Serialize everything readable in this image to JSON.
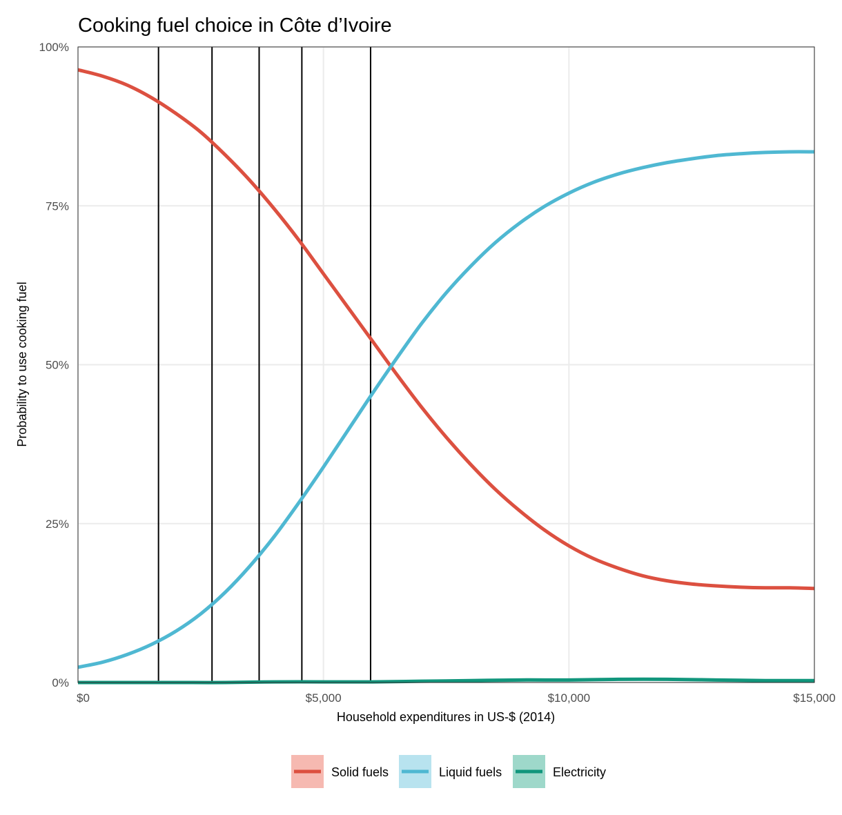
{
  "chart_data": {
    "type": "line",
    "title": "Cooking fuel choice in Côte d’Ivoire",
    "xlabel": "Household expenditures in US-$ (2014)",
    "ylabel": "Probability to use cooking fuel",
    "xlim": [
      0,
      15000
    ],
    "ylim": [
      0,
      1
    ],
    "x_ticks": [
      0,
      5000,
      10000,
      15000
    ],
    "x_tick_labels": [
      "$0",
      "$5,000",
      "$10,000",
      "$15,000"
    ],
    "y_ticks": [
      0,
      0.25,
      0.5,
      0.75,
      1
    ],
    "y_tick_labels": [
      "0%",
      "25%",
      "50%",
      "75%",
      "100%"
    ],
    "grid": true,
    "legend_position": "bottom",
    "vertical_lines": [
      1640,
      2730,
      3690,
      4560,
      5960
    ],
    "series": [
      {
        "name": "Solid fuels",
        "color": "#DC5040",
        "x": [
          0,
          500,
          1000,
          1500,
          2000,
          2500,
          3000,
          3500,
          4000,
          4500,
          5000,
          5500,
          6000,
          6500,
          7000,
          7500,
          8000,
          8500,
          9000,
          9500,
          10000,
          10500,
          11000,
          11500,
          12000,
          12500,
          13000,
          13500,
          14000,
          14500,
          15000
        ],
        "values": [
          0.964,
          0.954,
          0.94,
          0.92,
          0.895,
          0.866,
          0.83,
          0.79,
          0.745,
          0.696,
          0.643,
          0.59,
          0.537,
          0.484,
          0.433,
          0.386,
          0.343,
          0.304,
          0.27,
          0.24,
          0.215,
          0.195,
          0.18,
          0.168,
          0.16,
          0.155,
          0.152,
          0.15,
          0.149,
          0.149,
          0.148
        ]
      },
      {
        "name": "Liquid fuels",
        "color": "#4FB8D2",
        "x": [
          0,
          500,
          1000,
          1500,
          2000,
          2500,
          3000,
          3500,
          4000,
          4500,
          5000,
          5500,
          6000,
          6500,
          7000,
          7500,
          8000,
          8500,
          9000,
          9500,
          10000,
          10500,
          11000,
          11500,
          12000,
          12500,
          13000,
          13500,
          14000,
          14500,
          15000
        ],
        "values": [
          0.024,
          0.032,
          0.044,
          0.06,
          0.081,
          0.108,
          0.142,
          0.183,
          0.23,
          0.283,
          0.339,
          0.397,
          0.455,
          0.511,
          0.565,
          0.613,
          0.655,
          0.692,
          0.723,
          0.749,
          0.77,
          0.787,
          0.8,
          0.81,
          0.818,
          0.824,
          0.829,
          0.832,
          0.834,
          0.835,
          0.835
        ]
      },
      {
        "name": "Electricity",
        "color": "#11967C",
        "x": [
          0,
          1000,
          2000,
          3000,
          4000,
          5000,
          6000,
          7000,
          8000,
          9000,
          10000,
          11000,
          12000,
          13000,
          14000,
          15000
        ],
        "values": [
          0.0,
          0.0,
          0.0,
          0.0,
          0.001,
          0.001,
          0.001,
          0.002,
          0.003,
          0.004,
          0.004,
          0.005,
          0.005,
          0.004,
          0.003,
          0.003
        ]
      }
    ]
  }
}
